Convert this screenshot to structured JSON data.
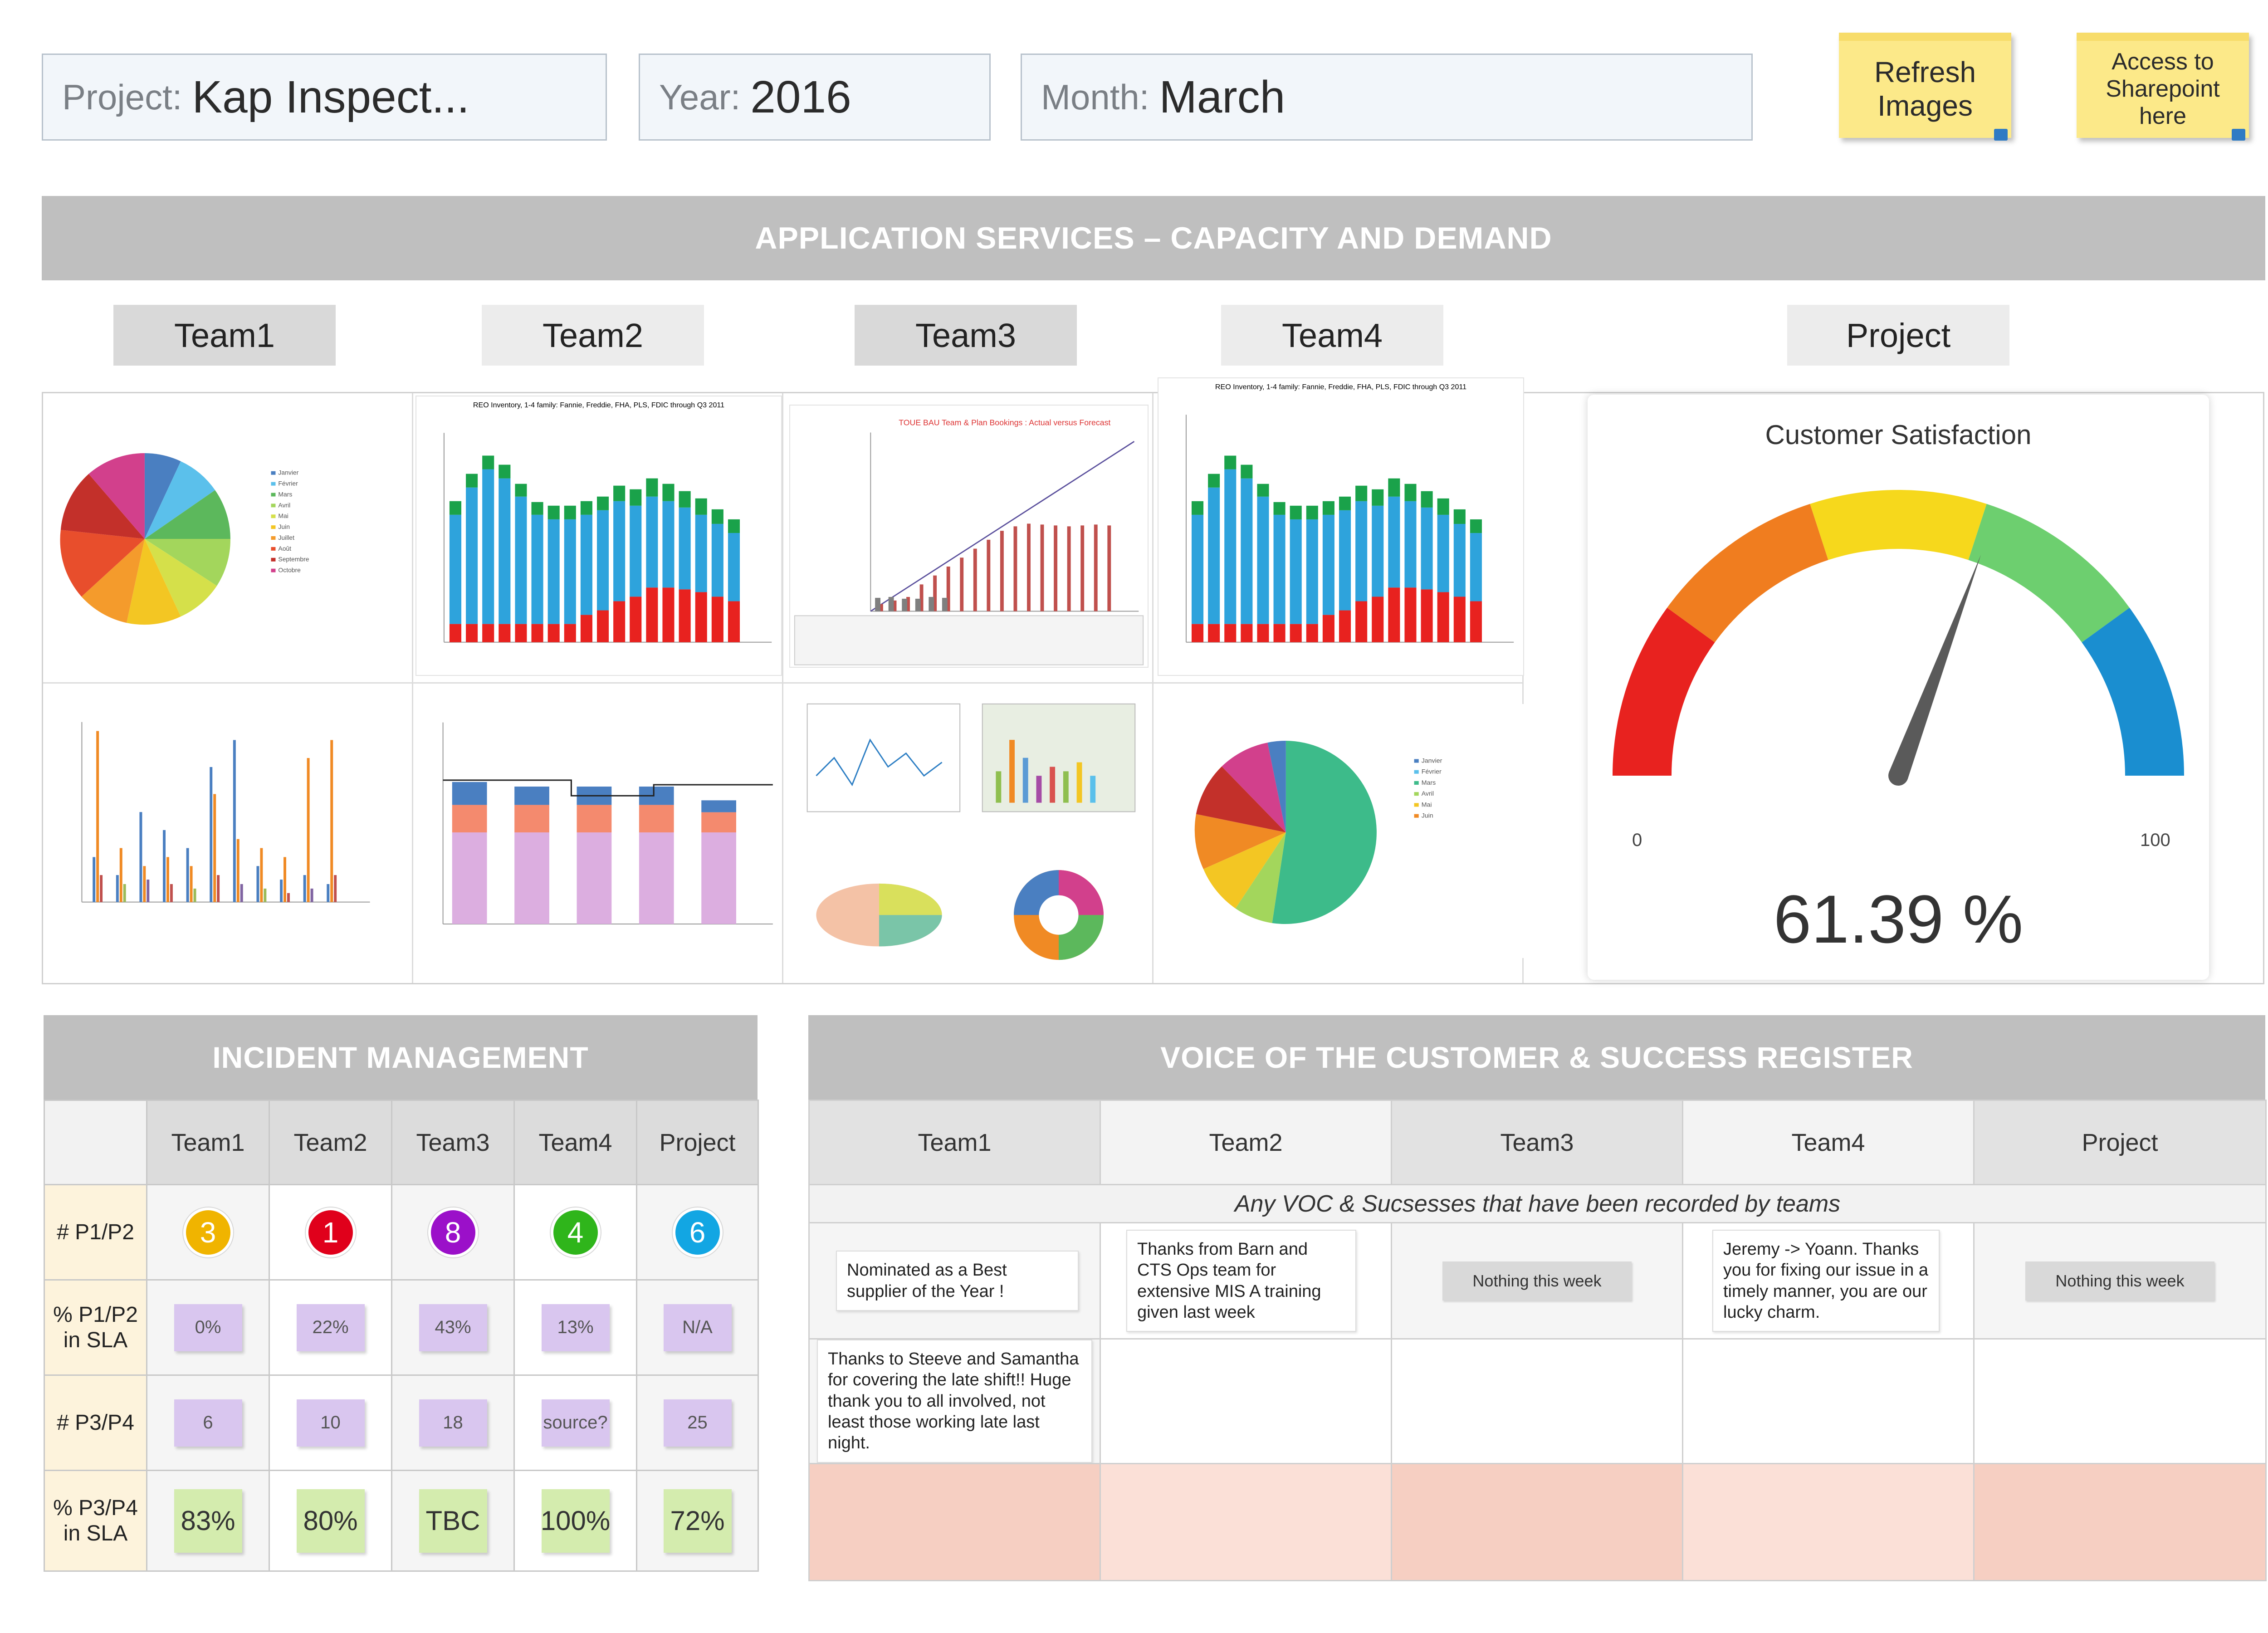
{
  "header": {
    "project_label": "Project:",
    "project_value": "Kap Inspect...",
    "year_label": "Year:",
    "year_value": "2016",
    "month_label": "Month:",
    "month_value": "March",
    "refresh_button": "Refresh Images",
    "sharepoint_button": "Access to Sharepoint here"
  },
  "capacity": {
    "title": "APPLICATION SERVICES – CAPACITY AND DEMAND",
    "tabs": [
      "Team1",
      "Team2",
      "Team3",
      "Team4",
      "Project"
    ]
  },
  "gauge": {
    "title": "Customer Satisfaction",
    "min_label": "0",
    "max_label": "100",
    "value": 61.39,
    "value_text": "61.39 %",
    "colors": [
      "#e8221f",
      "#f07d1f",
      "#f6d81c",
      "#6dcf6f",
      "#1a8ed0"
    ]
  },
  "incident": {
    "title": "INCIDENT MANAGEMENT",
    "columns": [
      "Team1",
      "Team2",
      "Team3",
      "Team4",
      "Project"
    ],
    "rows": [
      {
        "label": "# P1/P2",
        "type": "circle",
        "values": [
          "3",
          "1",
          "8",
          "4",
          "6"
        ],
        "colors": [
          "#f0b400",
          "#e0001b",
          "#9b10c9",
          "#2fb51b",
          "#12a6e3"
        ]
      },
      {
        "label": "% P1/P2 in SLA",
        "type": "chip",
        "values": [
          "0%",
          "22%",
          "43%",
          "13%",
          "N/A"
        ]
      },
      {
        "label": "# P3/P4",
        "type": "chip",
        "values": [
          "6",
          "10",
          "18",
          "source?",
          "25"
        ]
      },
      {
        "label": "% P3/P4 in SLA",
        "type": "green",
        "values": [
          "83%",
          "80%",
          "TBC",
          "100%",
          "72%"
        ]
      }
    ]
  },
  "voc": {
    "title": "VOICE OF THE CUSTOMER & SUCCESS REGISTER",
    "columns": [
      "Team1",
      "Team2",
      "Team3",
      "Team4",
      "Project"
    ],
    "subtitle": "Any VOC & Sucsesses that have been recorded by teams",
    "notes": {
      "team1_a": "Nominated as a Best supplier of the Year !",
      "team1_b": "Thanks to Steeve and Samantha for covering the late shift!! Huge thank you to all involved, not least those working late last night.",
      "team2_a": "Thanks from Barn and CTS Ops team for extensive MIS A training given last week",
      "team3_a": "Nothing this week",
      "team4_a": "Jeremy -> Yoann. Thanks you for fixing our issue in a timely manner, you are our lucky charm.",
      "project_a": "Nothing this week"
    }
  }
}
